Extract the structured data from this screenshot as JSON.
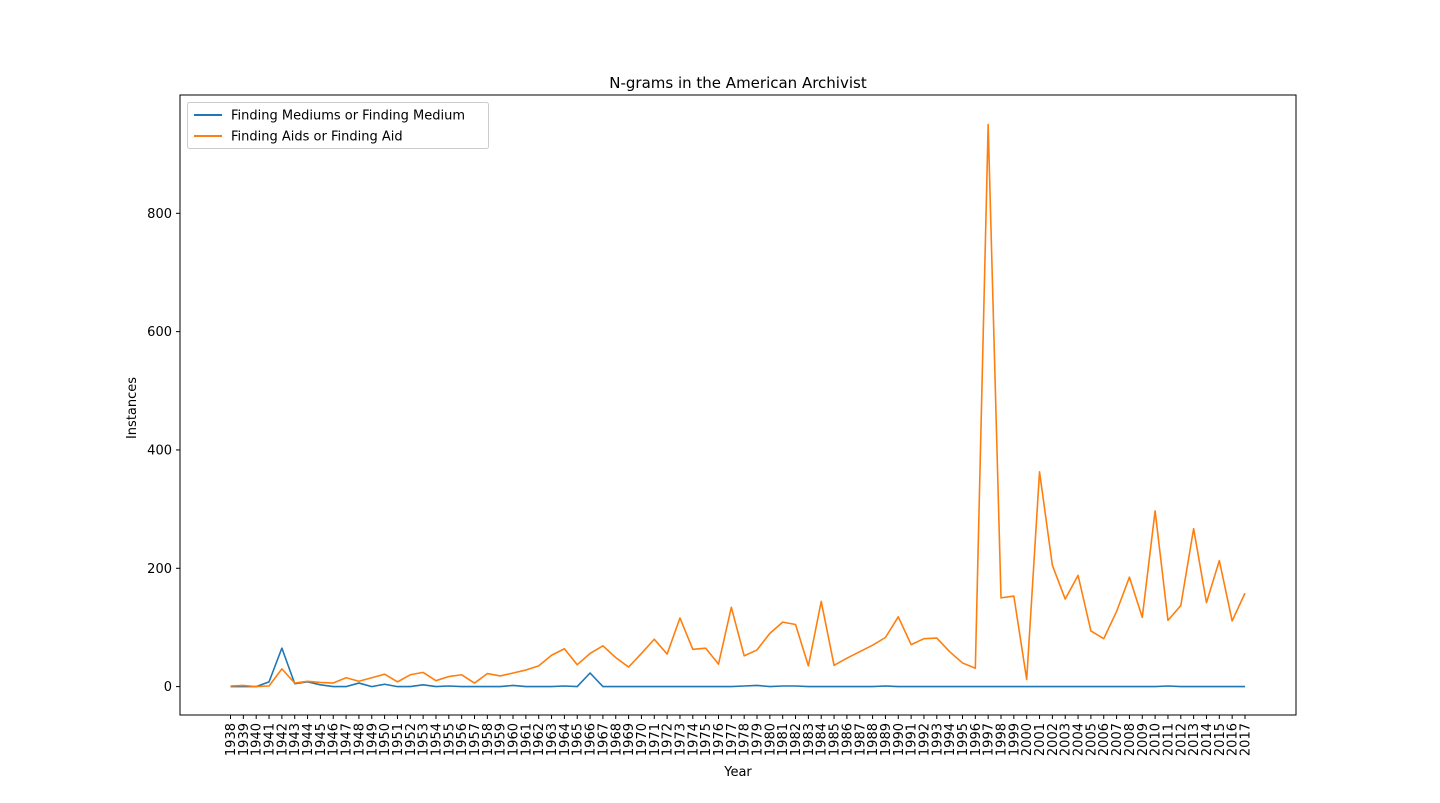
{
  "chart_data": {
    "type": "line",
    "title": "N-grams in the American Archivist",
    "xlabel": "Year",
    "ylabel": "Instances",
    "ylim": [
      -48,
      1000
    ],
    "yticks": [
      0,
      200,
      400,
      600,
      800
    ],
    "grid": false,
    "legend_placement": "top-left",
    "x": [
      1938,
      1939,
      1940,
      1941,
      1942,
      1943,
      1944,
      1945,
      1946,
      1947,
      1948,
      1949,
      1950,
      1951,
      1952,
      1953,
      1954,
      1955,
      1956,
      1957,
      1958,
      1959,
      1960,
      1961,
      1962,
      1963,
      1964,
      1965,
      1966,
      1967,
      1968,
      1969,
      1970,
      1971,
      1972,
      1973,
      1974,
      1975,
      1976,
      1977,
      1978,
      1979,
      1980,
      1981,
      1982,
      1983,
      1984,
      1985,
      1986,
      1987,
      1988,
      1989,
      1990,
      1991,
      1992,
      1993,
      1994,
      1995,
      1996,
      1997,
      1998,
      1999,
      2000,
      2001,
      2002,
      2003,
      2004,
      2005,
      2006,
      2007,
      2008,
      2009,
      2010,
      2011,
      2012,
      2013,
      2014,
      2015,
      2016,
      2017
    ],
    "series": [
      {
        "name": "Finding Mediums or Finding Medium",
        "color": "#1f77b4",
        "values": [
          0,
          0,
          0,
          8,
          65,
          5,
          8,
          3,
          0,
          0,
          6,
          0,
          4,
          0,
          0,
          3,
          0,
          1,
          0,
          0,
          0,
          0,
          2,
          0,
          0,
          0,
          1,
          0,
          23,
          0,
          0,
          0,
          0,
          0,
          0,
          0,
          0,
          0,
          0,
          0,
          1,
          2,
          0,
          1,
          1,
          0,
          0,
          0,
          0,
          0,
          0,
          1,
          0,
          0,
          0,
          0,
          0,
          0,
          0,
          0,
          0,
          0,
          0,
          0,
          0,
          0,
          0,
          0,
          0,
          0,
          0,
          0,
          0,
          1,
          0,
          0,
          0,
          0,
          0,
          0
        ]
      },
      {
        "name": "Finding Aids or Finding Aid",
        "color": "#ff7f0e",
        "values": [
          1,
          2,
          0,
          1,
          30,
          6,
          9,
          7,
          6,
          15,
          9,
          15,
          21,
          8,
          20,
          24,
          10,
          17,
          20,
          6,
          22,
          18,
          23,
          28,
          35,
          53,
          64,
          37,
          56,
          69,
          49,
          33,
          56,
          80,
          55,
          116,
          63,
          65,
          38,
          134,
          52,
          62,
          90,
          109,
          105,
          35,
          144,
          36,
          48,
          59,
          70,
          83,
          118,
          71,
          81,
          82,
          59,
          40,
          31,
          950,
          150,
          153,
          12,
          363,
          205,
          148,
          188,
          94,
          81,
          127,
          185,
          117,
          297,
          112,
          137,
          267,
          142,
          213,
          111,
          158
        ]
      }
    ]
  }
}
